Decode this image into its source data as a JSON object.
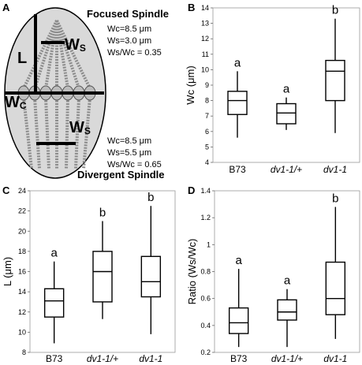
{
  "figure": {
    "panels": {
      "A": "A",
      "B": "B",
      "C": "C",
      "D": "D"
    }
  },
  "diagram": {
    "focused_title": "Focused Spindle",
    "divergent_title": "Divergent Spindle",
    "L_label": "L",
    "Wc_label": "Wc",
    "Ws_label": "Ws",
    "focused_notes": [
      "Wc=8.5 μm",
      "Ws=3.0 μm",
      "Ws/Wc = 0.35"
    ],
    "divergent_notes": [
      "Wc=8.5 μm",
      "Ws=5.5 μm",
      "Ws/Wc = 0.65"
    ]
  },
  "chart_data": [
    {
      "panel": "B",
      "type": "box",
      "ylabel": "Wc (μm)",
      "ylim": [
        4,
        14
      ],
      "yticks": [
        4,
        5,
        6,
        7,
        8,
        9,
        10,
        11,
        12,
        13,
        14
      ],
      "categories": [
        "B73",
        "dv1-1/+",
        "dv1-1"
      ],
      "italic": [
        false,
        true,
        true
      ],
      "boxes": [
        {
          "min": 5.6,
          "q1": 7.1,
          "median": 8.0,
          "q3": 8.6,
          "max": 9.9,
          "group": "a"
        },
        {
          "min": 6.1,
          "q1": 6.5,
          "median": 7.2,
          "q3": 7.8,
          "max": 8.2,
          "group": "a"
        },
        {
          "min": 5.9,
          "q1": 8.0,
          "median": 9.9,
          "q3": 10.6,
          "max": 13.3,
          "group": "b"
        }
      ]
    },
    {
      "panel": "C",
      "type": "box",
      "ylabel": "L (μm)",
      "ylim": [
        8,
        24
      ],
      "yticks": [
        8,
        10,
        12,
        14,
        16,
        18,
        20,
        22,
        24
      ],
      "categories": [
        "B73",
        "dv1-1/+",
        "dv1-1"
      ],
      "italic": [
        false,
        true,
        true
      ],
      "boxes": [
        {
          "min": 8.9,
          "q1": 11.5,
          "median": 13.1,
          "q3": 14.3,
          "max": 17.0,
          "group": "a"
        },
        {
          "min": 11.3,
          "q1": 13.0,
          "median": 16.0,
          "q3": 18.0,
          "max": 21.0,
          "group": "b"
        },
        {
          "min": 9.8,
          "q1": 13.5,
          "median": 15.0,
          "q3": 17.5,
          "max": 22.5,
          "group": "b"
        }
      ]
    },
    {
      "panel": "D",
      "type": "box",
      "ylabel": "Ratio (Ws/Wc)",
      "ylim": [
        0.2,
        1.4
      ],
      "yticks": [
        0.2,
        0.4,
        0.6,
        0.8,
        1.0,
        1.2,
        1.4
      ],
      "ytick_labels": [
        "0.2",
        "0.4",
        "0.6",
        "0.8",
        "1",
        "1.2",
        "1.4"
      ],
      "categories": [
        "B73",
        "dv1-1/+",
        "dv1-1"
      ],
      "italic": [
        false,
        true,
        true
      ],
      "boxes": [
        {
          "min": 0.24,
          "q1": 0.34,
          "median": 0.42,
          "q3": 0.53,
          "max": 0.82,
          "group": "a"
        },
        {
          "min": 0.24,
          "q1": 0.44,
          "median": 0.5,
          "q3": 0.59,
          "max": 0.67,
          "group": "a"
        },
        {
          "min": 0.3,
          "q1": 0.48,
          "median": 0.6,
          "q3": 0.87,
          "max": 1.28,
          "group": "b"
        }
      ]
    }
  ]
}
